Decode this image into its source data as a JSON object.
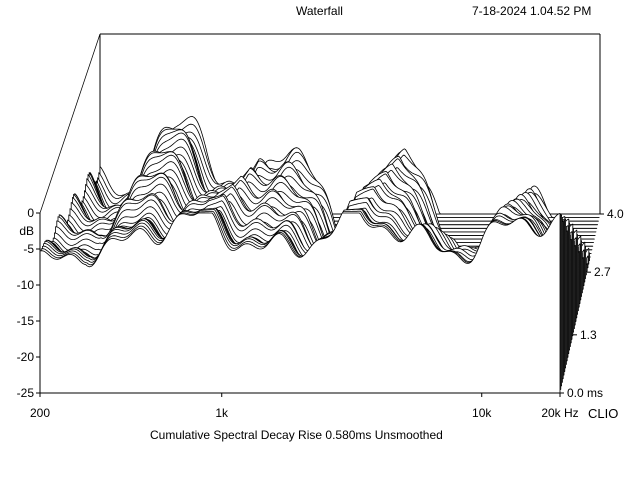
{
  "header": {
    "title": "Waterfall",
    "timestamp": "7-18-2024 1.04.52 PM"
  },
  "footer": {
    "caption": "Cumulative Spectral Decay   Rise 0.580ms   Unsmoothed",
    "brand": "CLIO"
  },
  "chart_data": {
    "type": "waterfall",
    "title": "Waterfall",
    "subtitle": "Cumulative Spectral Decay   Rise 0.580ms   Unsmoothed",
    "x_axis": {
      "unit": "Hz",
      "scale": "log",
      "range": [
        200,
        20000
      ],
      "tick_labels": [
        "200",
        "1k",
        "10k",
        "20k"
      ],
      "tick_values": [
        200,
        1000,
        10000,
        20000
      ]
    },
    "y_axis": {
      "label": "dB",
      "range": [
        -25,
        0
      ],
      "tick_labels": [
        "0",
        "-5",
        "-10",
        "-15",
        "-20",
        "-25"
      ],
      "tick_values": [
        0,
        -5,
        -10,
        -15,
        -20,
        -25
      ]
    },
    "z_axis": {
      "unit": "ms",
      "range": [
        0.0,
        4.0
      ],
      "tick_labels": [
        "0.0",
        "1.3",
        "2.7",
        "4.0"
      ],
      "tick_values": [
        0.0,
        1.3,
        2.7,
        4.0
      ]
    },
    "slices": 50,
    "line_color": "#000000",
    "background_color": "#ffffff",
    "grid": false
  }
}
